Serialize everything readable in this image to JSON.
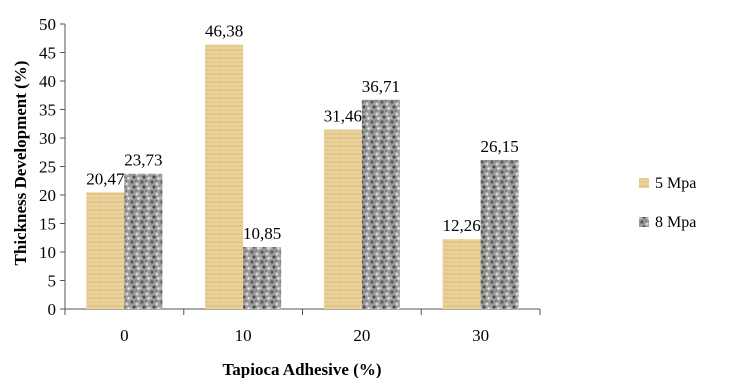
{
  "chart_data": {
    "type": "bar",
    "title": "",
    "xlabel": "Tapioca Adhesive (%)",
    "ylabel": "Thickness Development (%)",
    "ylim": [
      0,
      50
    ],
    "yticks": [
      0,
      5,
      10,
      15,
      20,
      25,
      30,
      35,
      40,
      45,
      50
    ],
    "categories": [
      "0",
      "10",
      "20",
      "30"
    ],
    "series": [
      {
        "name": "5 Mpa",
        "values": [
          20.47,
          46.38,
          31.46,
          12.26
        ],
        "labels": [
          "20,47",
          "46,38",
          "31,46",
          "12,26"
        ],
        "color": "#e8c98a"
      },
      {
        "name": "8 Mpa",
        "values": [
          23.73,
          10.85,
          36.71,
          26.15
        ],
        "labels": [
          "23,73",
          "10,85",
          "36,71",
          "26,15"
        ],
        "color": "#8a8a8a"
      }
    ],
    "legend_position": "right",
    "grid": false
  }
}
